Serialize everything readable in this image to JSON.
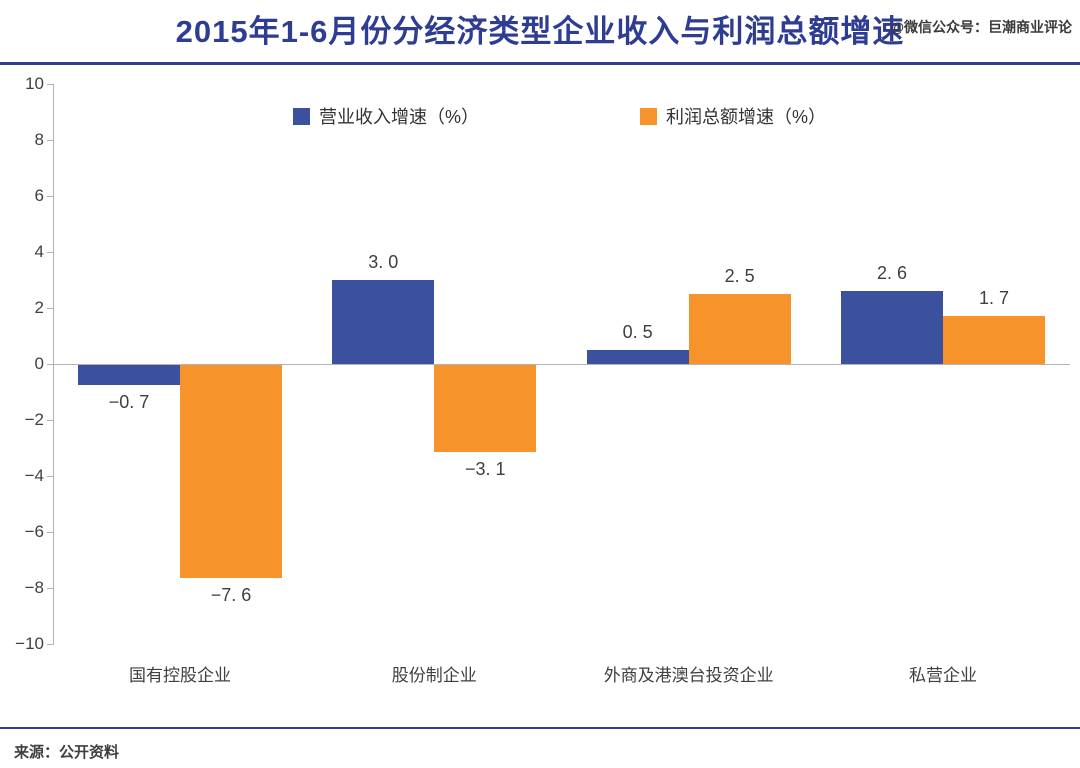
{
  "header": {
    "title": "2015年1-6月份分经济类型企业收入与利润总额增速",
    "watermark": "@微信公众号：巨潮商业评论"
  },
  "chart_data": {
    "type": "bar",
    "title": "2015年1-6月份分经济类型企业收入与利润总额增速",
    "categories": [
      "国有控股企业",
      "股份制企业",
      "外商及港澳台投资企业",
      "私营企业"
    ],
    "series": [
      {
        "key": "revenue",
        "name": "营业收入增速（%）",
        "color": "#3C519D",
        "values": [
          -0.7,
          3.0,
          0.5,
          2.6
        ],
        "labels": [
          "−0. 7",
          "3. 0",
          "0. 5",
          "2. 6"
        ]
      },
      {
        "key": "profit",
        "name": "利润总额增速（%）",
        "color": "#F6932B",
        "values": [
          -7.6,
          -3.1,
          2.5,
          1.7
        ],
        "labels": [
          "−7. 6",
          "−3. 1",
          "2. 5",
          "1. 7"
        ]
      }
    ],
    "y_ticks": [
      10,
      8,
      6,
      4,
      2,
      0,
      -2,
      -4,
      -6,
      -8,
      -10
    ],
    "y_tick_labels": [
      "10",
      "8",
      "6",
      "4",
      "2",
      "0",
      "−2",
      "−4",
      "−6",
      "−8",
      "−10"
    ],
    "ylim": [
      -10,
      10
    ],
    "grid": false,
    "legend_position": "top"
  },
  "footer": {
    "source": "来源：公开资料"
  },
  "colors": {
    "accent_navy": "#2E3C92",
    "bar_blue": "#3C519D",
    "bar_orange": "#F6932B",
    "axis_gray": "#B3B3B3",
    "text_dark": "#404040"
  }
}
